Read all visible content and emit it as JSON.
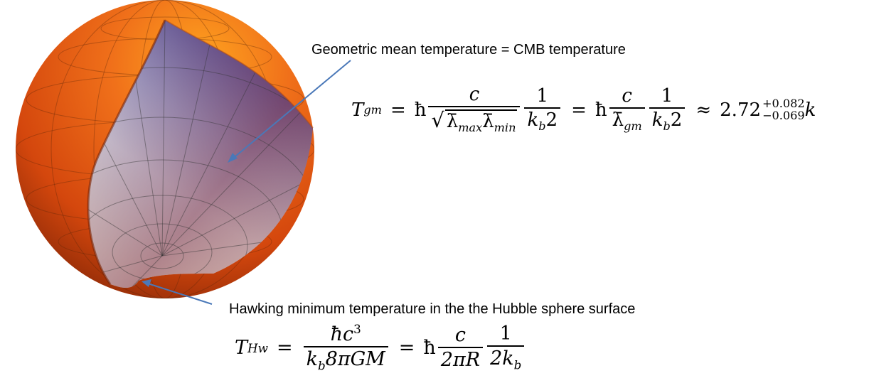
{
  "annotations": {
    "top_label": "Geometric mean  temperature = CMB temperature",
    "bottom_label": "Hawking minimum temperature in the the Hubble sphere surface"
  },
  "equation_gm": {
    "lhs_symbol": "T",
    "lhs_sub": "gm",
    "hbar": "ħ",
    "c": "c",
    "lambda_max": "λ̄",
    "max_sub": "max",
    "lambda_min": "λ̄",
    "min_sub": "min",
    "one": "1",
    "kb": "k",
    "kb_sub": "b",
    "two": "2",
    "lambda_gm": "λ̄",
    "gm_sub": "gm",
    "approx": "≈",
    "value": "2.72",
    "plus_err": "+0.082",
    "minus_err": "−0.069",
    "unit": "k"
  },
  "equation_hw": {
    "lhs_symbol": "T",
    "lhs_sub": "Hw",
    "num1": "ħc",
    "num1_sup": "3",
    "den1_k": "k",
    "den1_sub": "b",
    "den1_rest": "8πGM",
    "hbar": "ħ",
    "c": "c",
    "den2": "2πR",
    "one": "1",
    "den3": "2k",
    "den3_sub": "b"
  },
  "colors": {
    "sphere_outer": "#e8560f",
    "sphere_highlight": "#ff9a1a",
    "inner_top": "#4a3f8a",
    "inner_mid": "#c7d0e6",
    "inner_bottom": "#f3ead2",
    "arrow": "#4a78b8"
  }
}
